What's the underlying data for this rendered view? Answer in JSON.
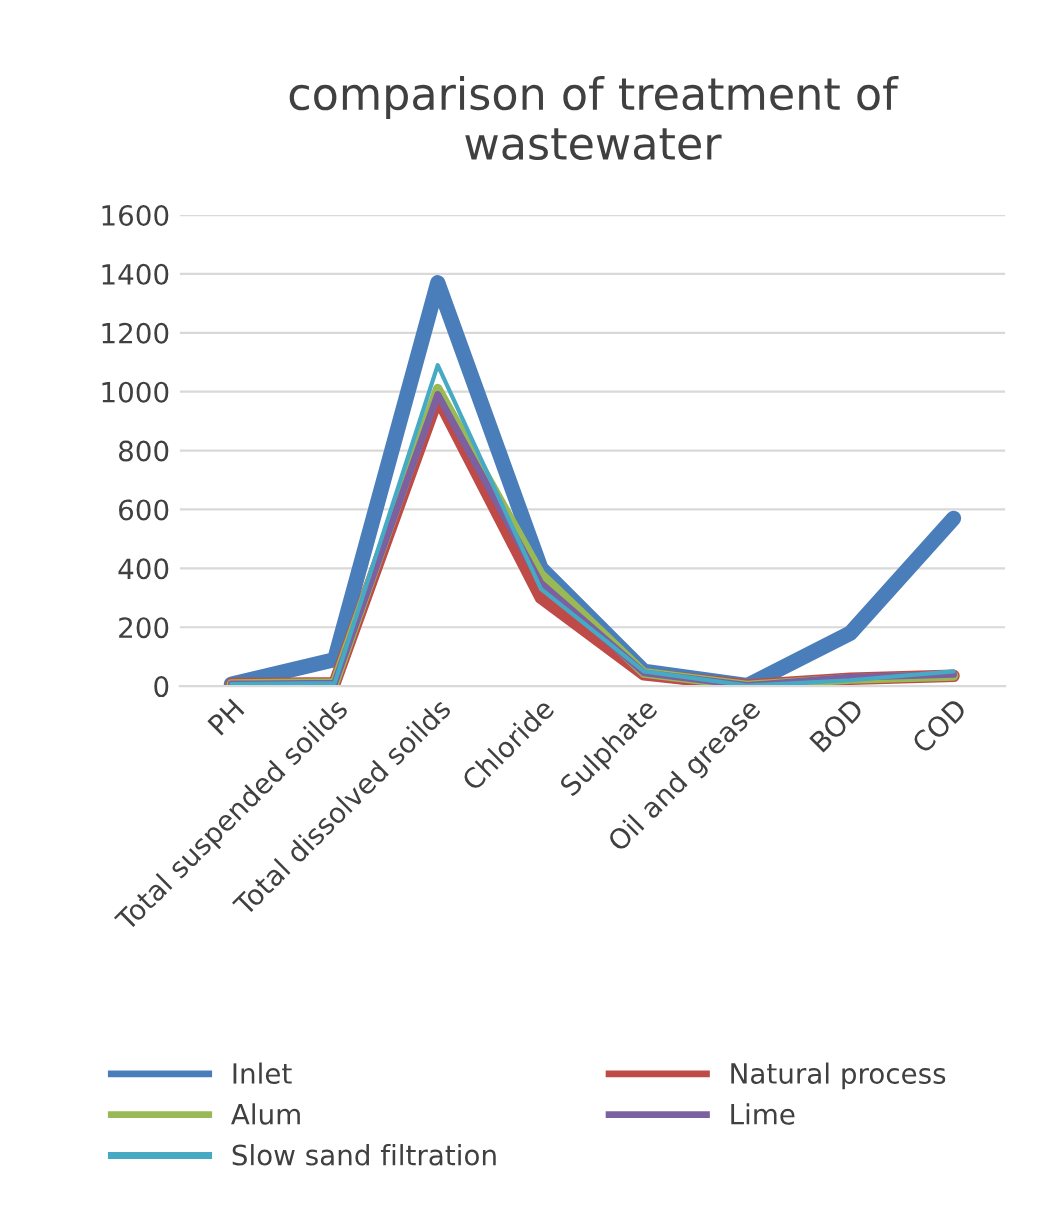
{
  "chart_data": {
    "type": "line",
    "title": "comparison of treatment of wastewater",
    "categories": [
      "PH",
      "Total suspended soilds",
      "Total dissolved soilds",
      "Chloride",
      "Sulphate",
      "Oil and grease",
      "BOD",
      "COD"
    ],
    "series": [
      {
        "name": "Inlet",
        "color": "#4a7ebb",
        "values": [
          7,
          90,
          1370,
          400,
          50,
          2,
          180,
          570
        ]
      },
      {
        "name": "Natural process",
        "color": "#be4b48",
        "values": [
          7,
          10,
          980,
          300,
          40,
          2,
          25,
          35
        ]
      },
      {
        "name": "Alum",
        "color": "#98b954",
        "values": [
          7,
          10,
          1010,
          380,
          45,
          2,
          25,
          35
        ]
      },
      {
        "name": "Lime",
        "color": "#7d60a0",
        "values": [
          7,
          10,
          990,
          350,
          45,
          2,
          30,
          40
        ]
      },
      {
        "name": "Slow sand filtration",
        "color": "#46aac5",
        "values": [
          7,
          10,
          1090,
          330,
          50,
          2,
          20,
          50
        ]
      }
    ],
    "ylim": [
      0,
      1600
    ],
    "yticks": [
      0,
      200,
      400,
      600,
      800,
      1000,
      1200,
      1400,
      1600
    ],
    "grid": "y",
    "legend": "bottom",
    "marker": "none",
    "line_style": "solid"
  }
}
